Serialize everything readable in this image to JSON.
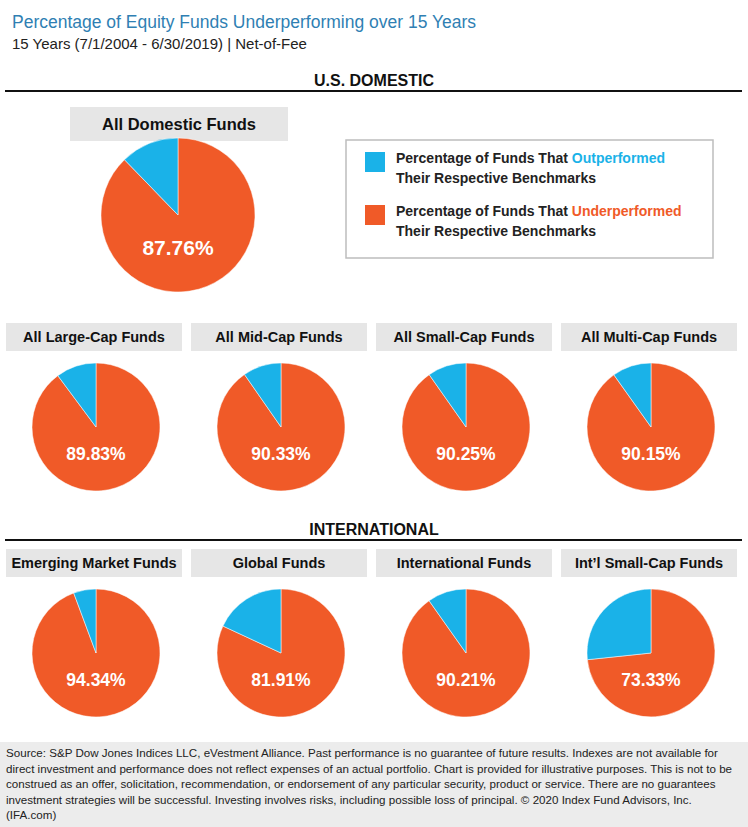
{
  "title": "Percentage of Equity Funds Underperforming over 15 Years",
  "subtitle": "15 Years (7/1/2004 - 6/30/2019) | Net-of-Fee",
  "sections": [
    "U.S. DOMESTIC",
    "INTERNATIONAL"
  ],
  "legend_box": {
    "items": [
      {
        "color": "#1ab2e8",
        "lines": [
          {
            "text": "Percentage of Funds That ",
            "highlight": "Outperformed"
          },
          {
            "text": "Their Respective Benchmarks"
          }
        ]
      },
      {
        "color": "#f05a28",
        "lines": [
          {
            "text": "Percentage of Funds That ",
            "highlight": "Underperformed"
          },
          {
            "text": "Their Respective Benchmarks"
          }
        ]
      }
    ]
  },
  "chart_data": [
    {
      "type": "pie",
      "title": "All Domestic Funds",
      "values": [
        87.76,
        12.24
      ],
      "value_labels": [
        "87.76%",
        null
      ],
      "colors": [
        "#f05a28",
        "#1ab2e8"
      ]
    },
    {
      "type": "pie",
      "title": "All Large-Cap Funds",
      "values": [
        89.83,
        10.17
      ],
      "value_labels": [
        "89.83%",
        null
      ],
      "colors": [
        "#f05a28",
        "#1ab2e8"
      ]
    },
    {
      "type": "pie",
      "title": "All Mid-Cap Funds",
      "values": [
        90.33,
        9.67
      ],
      "value_labels": [
        "90.33%",
        null
      ],
      "colors": [
        "#f05a28",
        "#1ab2e8"
      ]
    },
    {
      "type": "pie",
      "title": "All Small-Cap Funds",
      "values": [
        90.25,
        9.75
      ],
      "value_labels": [
        "90.25%",
        null
      ],
      "colors": [
        "#f05a28",
        "#1ab2e8"
      ]
    },
    {
      "type": "pie",
      "title": "All Multi-Cap Funds",
      "values": [
        90.15,
        9.85
      ],
      "value_labels": [
        "90.15%",
        null
      ],
      "colors": [
        "#f05a28",
        "#1ab2e8"
      ]
    },
    {
      "type": "pie",
      "title": "Emerging Market Funds",
      "values": [
        94.34,
        5.66
      ],
      "value_labels": [
        "94.34%",
        null
      ],
      "colors": [
        "#f05a28",
        "#1ab2e8"
      ]
    },
    {
      "type": "pie",
      "title": "Global Funds",
      "values": [
        81.91,
        18.09
      ],
      "value_labels": [
        "81.91%",
        null
      ],
      "colors": [
        "#f05a28",
        "#1ab2e8"
      ]
    },
    {
      "type": "pie",
      "title": "International Funds",
      "values": [
        90.21,
        9.79
      ],
      "value_labels": [
        "90.21%",
        null
      ],
      "colors": [
        "#f05a28",
        "#1ab2e8"
      ]
    },
    {
      "type": "pie",
      "title": "Int’l Small-Cap Funds",
      "values": [
        73.33,
        26.67
      ],
      "value_labels": [
        "73.33%",
        null
      ],
      "colors": [
        "#f05a28",
        "#1ab2e8"
      ]
    }
  ],
  "footer": "Source: S&P Dow Jones Indices LLC, eVestment Alliance. Past performance is no guarantee of future results. Indexes are not available for direct investment and performance does not reflect expenses of an actual portfolio. Chart is provided for illustrative purposes. This is not to be construed as an offer, solicitation, recommendation, or endorsement of any particular security, product or service. There are no guarantees investment strategies will be successful. Investing involves risks, including possible loss of principal. © 2020 Index Fund Advisors, Inc. (IFA.com)"
}
